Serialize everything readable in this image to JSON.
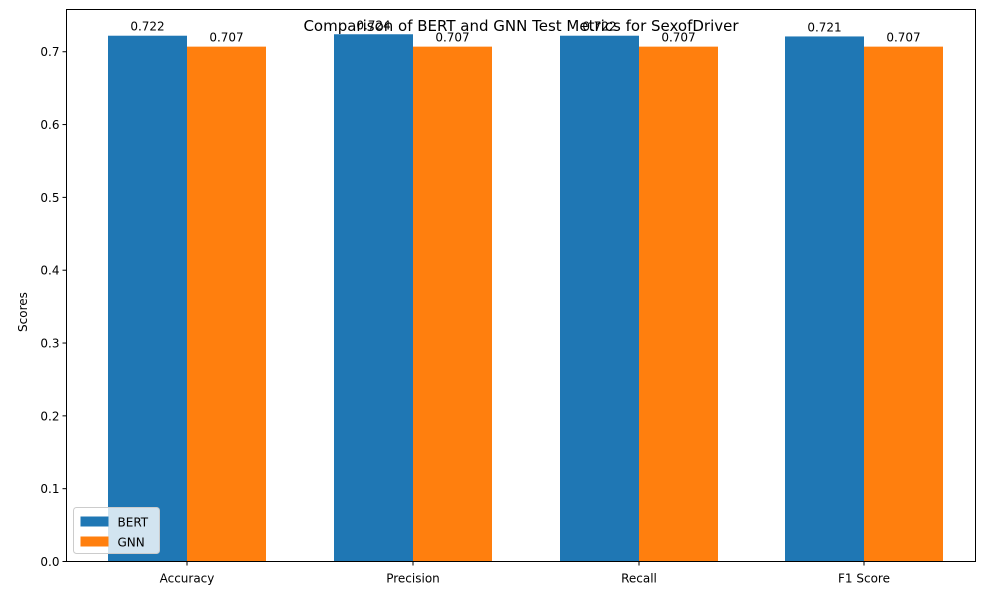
{
  "chart_data": {
    "type": "bar",
    "title": "Comparison of BERT and GNN Test Metrics for SexofDriver",
    "xlabel": "",
    "ylabel": "Scores",
    "categories": [
      "Accuracy",
      "Precision",
      "Recall",
      "F1 Score"
    ],
    "series": [
      {
        "name": "BERT",
        "values": [
          0.722,
          0.724,
          0.722,
          0.721
        ],
        "labels": [
          "0.722",
          "0.724",
          "0.722",
          "0.721"
        ],
        "color": "#1f77b4"
      },
      {
        "name": "GNN",
        "values": [
          0.707,
          0.707,
          0.707,
          0.707
        ],
        "labels": [
          "0.707",
          "0.707",
          "0.707",
          "0.707"
        ],
        "color": "#ff7f0e"
      }
    ],
    "ylim": [
      0,
      0.758
    ],
    "yticks": [
      0.0,
      0.1,
      0.2,
      0.3,
      0.4,
      0.5,
      0.6,
      0.7
    ],
    "ytick_labels": [
      "0.0",
      "0.1",
      "0.2",
      "0.3",
      "0.4",
      "0.5",
      "0.6",
      "0.7"
    ],
    "grid": false,
    "legend_position": "lower-left"
  }
}
